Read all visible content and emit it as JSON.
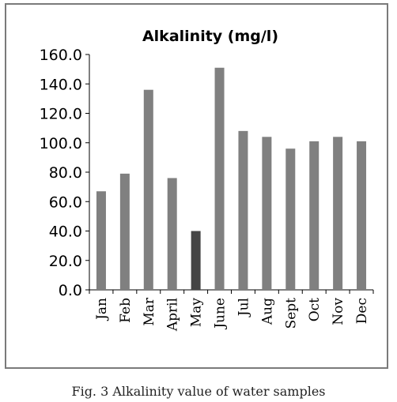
{
  "caption": "Fig. 3 Alkalinity value of water samples",
  "chart_data": {
    "type": "bar",
    "title": "Alkalinity (mg/l)",
    "xlabel": "",
    "ylabel": "",
    "ylim": [
      0,
      160
    ],
    "yticks": [
      "0.0",
      "20.0",
      "40.0",
      "60.0",
      "80.0",
      "100.0",
      "120.0",
      "140.0",
      "160.0"
    ],
    "grid": false,
    "legend": "none",
    "categories": [
      "Jan",
      "Feb",
      "Mar",
      "April",
      "May",
      "June",
      "Jul",
      "Aug",
      "Sept",
      "Oct",
      "Nov",
      "Dec"
    ],
    "values": [
      67,
      79,
      136,
      76,
      40,
      151,
      108,
      104,
      96,
      101,
      104,
      101
    ],
    "colors": {
      "bar": "#808080",
      "highlight_bar": "#454545",
      "axis": "#000000",
      "frame": "#7a7a7a"
    },
    "highlight_index": 4
  }
}
